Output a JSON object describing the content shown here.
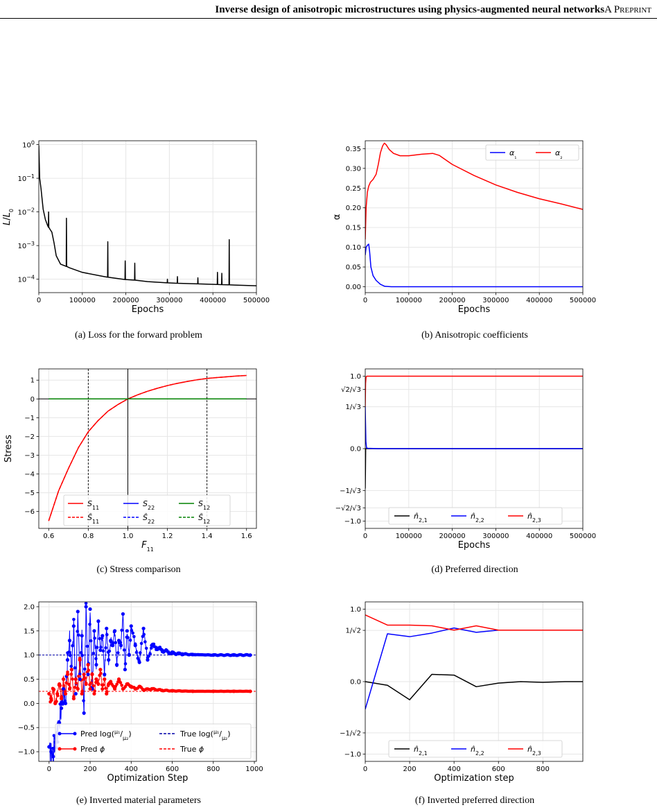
{
  "header": {
    "title": "Inverse design of anisotropic microstructures using physics-augmented neural networks",
    "tag": "A Preprint"
  },
  "captions": {
    "a": "(a) Loss for the forward problem",
    "b": "(b) Anisotropic coefficients",
    "c": "(c) Stress comparison",
    "d": "(d) Preferred direction",
    "e": "(e) Inverted material parameters",
    "f": "(f) Inverted preferred direction"
  },
  "chart_data": [
    {
      "id": "a",
      "type": "line",
      "xlabel": "Epochs",
      "ylabel": "L/L₀",
      "xlim": [
        0,
        500000
      ],
      "ylim": [
        4e-05,
        1.3
      ],
      "yscale": "log",
      "xticks": [
        0,
        100000,
        200000,
        300000,
        400000,
        500000
      ],
      "xtick_labels": [
        "0",
        "100000",
        "200000",
        "300000",
        "400000",
        "500000"
      ],
      "yticks": [
        1,
        0.1,
        0.01,
        0.001,
        0.0001
      ],
      "ytick_labels": [
        [
          "10",
          "0"
        ],
        [
          "10",
          "−1"
        ],
        [
          "10",
          "−2"
        ],
        [
          "10",
          "−3"
        ],
        [
          "10",
          "−4"
        ]
      ],
      "grid": true,
      "series": [
        {
          "color": "#000000",
          "x": [
            0,
            2000,
            5000,
            10000,
            15000,
            20000,
            22000,
            22500,
            23000,
            26000,
            30000,
            35000,
            40000,
            50000,
            60000,
            63000,
            63500,
            64000,
            70000,
            100000,
            150000,
            158000,
            158500,
            159000,
            198000,
            198500,
            199000,
            220000,
            220500,
            221000,
            250000,
            295000,
            295500,
            296000,
            318000,
            318500,
            319000,
            365000,
            365500,
            366000,
            410000,
            410500,
            411000,
            420000,
            420500,
            421000,
            437000,
            437500,
            438000,
            450000,
            500000
          ],
          "y": [
            0.95,
            0.1,
            0.05,
            0.012,
            0.006,
            0.004,
            0.0035,
            0.01,
            0.0035,
            0.003,
            0.0025,
            0.0012,
            0.0005,
            0.00028,
            0.00025,
            0.00024,
            0.0065,
            0.00024,
            0.00022,
            0.00016,
            0.00012,
            0.000115,
            0.0013,
            0.000115,
            9.8e-05,
            0.00035,
            9.8e-05,
            9.4e-05,
            0.0003,
            9.4e-05,
            8.5e-05,
            7.8e-05,
            0.0001,
            7.8e-05,
            7.6e-05,
            0.00012,
            7.6e-05,
            7.3e-05,
            0.00011,
            7.3e-05,
            7e-05,
            0.00016,
            7e-05,
            6.9e-05,
            0.00015,
            6.9e-05,
            6.8e-05,
            0.0015,
            6.8e-05,
            6.7e-05,
            6.4e-05
          ]
        }
      ]
    },
    {
      "id": "b",
      "type": "line",
      "xlabel": "Epochs",
      "ylabel": "α",
      "xlim": [
        0,
        500000
      ],
      "ylim": [
        -0.015,
        0.37
      ],
      "xticks": [
        0,
        100000,
        200000,
        300000,
        400000,
        500000
      ],
      "xtick_labels": [
        "0",
        "100000",
        "200000",
        "300000",
        "400000",
        "500000"
      ],
      "yticks": [
        0,
        0.05,
        0.1,
        0.15,
        0.2,
        0.25,
        0.3,
        0.35
      ],
      "ytick_labels": [
        "0.00",
        "0.05",
        "0.10",
        "0.15",
        "0.20",
        "0.25",
        "0.30",
        "0.35"
      ],
      "grid": true,
      "legend": "top-right",
      "series": [
        {
          "name": "α₁",
          "color": "#0000ff",
          "x": [
            0,
            2000,
            5000,
            8000,
            10000,
            13000,
            18000,
            25000,
            35000,
            45000,
            60000,
            100000,
            500000
          ],
          "y": [
            0.08,
            0.1,
            0.105,
            0.108,
            0.09,
            0.05,
            0.028,
            0.016,
            0.006,
            0.001,
            0,
            0,
            0
          ]
        },
        {
          "name": "α₂",
          "color": "#ff0000",
          "x": [
            0,
            2000,
            5000,
            8000,
            12000,
            18000,
            25000,
            30000,
            35000,
            40000,
            44000,
            48000,
            55000,
            65000,
            80000,
            100000,
            130000,
            155000,
            170000,
            200000,
            250000,
            300000,
            350000,
            400000,
            450000,
            500000
          ],
          "y": [
            0.12,
            0.2,
            0.24,
            0.255,
            0.265,
            0.272,
            0.285,
            0.31,
            0.34,
            0.357,
            0.364,
            0.36,
            0.348,
            0.338,
            0.332,
            0.332,
            0.336,
            0.338,
            0.333,
            0.31,
            0.282,
            0.258,
            0.239,
            0.223,
            0.21,
            0.196
          ]
        }
      ]
    },
    {
      "id": "c",
      "type": "line",
      "xlabel": "F₁₁",
      "ylabel": "Stress",
      "xlim": [
        0.55,
        1.65
      ],
      "ylim": [
        -6.9,
        1.6
      ],
      "xticks": [
        0.6,
        0.8,
        1.0,
        1.2,
        1.4,
        1.6
      ],
      "xtick_labels": [
        "0.6",
        "0.8",
        "1.0",
        "1.2",
        "1.4",
        "1.6"
      ],
      "yticks": [
        1,
        0,
        -1,
        -2,
        -3,
        -4,
        -5,
        -6
      ],
      "ytick_labels": [
        "1",
        "0",
        "−1",
        "−2",
        "−3",
        "−4",
        "−5",
        "−6"
      ],
      "vlines_dashed": [
        0.8,
        1.4
      ],
      "vline_solid": 1.0,
      "hline_solid": 0,
      "grid": true,
      "legend": "lower-center",
      "series": [
        {
          "name": "S",
          "sub": "11",
          "hat": false,
          "dash": false,
          "color": "#ff0000",
          "x": [
            0.6,
            0.65,
            0.7,
            0.75,
            0.8,
            0.85,
            0.9,
            0.95,
            1.0,
            1.05,
            1.1,
            1.15,
            1.2,
            1.25,
            1.3,
            1.35,
            1.4,
            1.45,
            1.5,
            1.55,
            1.6
          ],
          "y": [
            -6.5,
            -4.9,
            -3.7,
            -2.6,
            -1.75,
            -1.15,
            -0.65,
            -0.3,
            0,
            0.22,
            0.41,
            0.57,
            0.71,
            0.83,
            0.93,
            1.02,
            1.09,
            1.14,
            1.18,
            1.22,
            1.25
          ]
        },
        {
          "name": "Ŝ",
          "sub": "11",
          "hat": true,
          "dash": true,
          "color": "#ff0000",
          "x": [
            0.6,
            0.65,
            0.7,
            0.75,
            0.8,
            0.85,
            0.9,
            0.95,
            1.0,
            1.05,
            1.1,
            1.15,
            1.2,
            1.25,
            1.3,
            1.35,
            1.4,
            1.45,
            1.5,
            1.55,
            1.6
          ],
          "y": [
            -6.5,
            -4.9,
            -3.7,
            -2.6,
            -1.75,
            -1.15,
            -0.65,
            -0.3,
            0,
            0.22,
            0.41,
            0.57,
            0.71,
            0.83,
            0.93,
            1.02,
            1.09,
            1.14,
            1.18,
            1.22,
            1.25
          ]
        },
        {
          "name": "S",
          "sub": "22",
          "hat": false,
          "dash": false,
          "color": "#0000ff",
          "x": [
            0.6,
            1.6
          ],
          "y": [
            0,
            0
          ]
        },
        {
          "name": "Ŝ",
          "sub": "22",
          "hat": true,
          "dash": true,
          "color": "#0000ff",
          "x": [
            0.6,
            1.6
          ],
          "y": [
            0,
            0
          ]
        },
        {
          "name": "S",
          "sub": "12",
          "hat": false,
          "dash": false,
          "color": "#008000",
          "x": [
            0.6,
            1.6
          ],
          "y": [
            0,
            0
          ]
        },
        {
          "name": "Ŝ",
          "sub": "12",
          "hat": true,
          "dash": true,
          "color": "#008000",
          "x": [
            0.6,
            1.6
          ],
          "y": [
            0,
            0
          ]
        }
      ]
    },
    {
      "id": "d",
      "type": "line",
      "xlabel": "Epochs",
      "ylabel": "",
      "xlim": [
        0,
        500000
      ],
      "ylim": [
        -1.1,
        1.1
      ],
      "xticks": [
        0,
        100000,
        200000,
        300000,
        400000,
        500000
      ],
      "xtick_labels": [
        "0",
        "100000",
        "200000",
        "300000",
        "400000",
        "500000"
      ],
      "yticks": [
        1.0,
        0.8165,
        0.57735,
        0.0,
        -0.57735,
        -0.8165,
        -1.0
      ],
      "ytick_labels": [
        "1.0",
        "√2/√3",
        "1/√3",
        "0.0",
        "−1/√3",
        "−√2/√3",
        "−1.0"
      ],
      "grid": true,
      "legend": "lower-center",
      "series": [
        {
          "name": "n̂",
          "sub": "2,1",
          "color": "#000000",
          "x": [
            0,
            500,
            1000,
            2000,
            4000,
            500000
          ],
          "y": [
            -0.55,
            -0.3,
            0,
            0,
            0,
            0
          ]
        },
        {
          "name": "n̂",
          "sub": "2,2",
          "color": "#0000ff",
          "x": [
            0,
            500,
            1500,
            3000,
            6000,
            30000,
            500000
          ],
          "y": [
            0.58,
            0.4,
            0.1,
            0.01,
            0.005,
            0,
            0
          ]
        },
        {
          "name": "n̂",
          "sub": "2,3",
          "color": "#ff0000",
          "x": [
            0,
            800,
            2000,
            4000,
            500000
          ],
          "y": [
            0.58,
            0.9,
            0.99,
            1.0,
            1.0
          ]
        }
      ]
    },
    {
      "id": "e",
      "type": "line",
      "xlabel": "Optimization Step",
      "ylabel": "",
      "xlim": [
        -50,
        1010
      ],
      "ylim": [
        -1.2,
        2.1
      ],
      "xticks": [
        0,
        200,
        400,
        600,
        800,
        1000
      ],
      "xtick_labels": [
        "0",
        "200",
        "400",
        "600",
        "800",
        "1000"
      ],
      "yticks": [
        2.0,
        1.5,
        1.0,
        0.5,
        0.0,
        -0.5,
        -1.0
      ],
      "ytick_labels": [
        "2.0",
        "1.5",
        "1.0",
        "0.5",
        "0.0",
        "−0.5",
        "−1.0"
      ],
      "true_lines": [
        1.0,
        0.25
      ],
      "steps": 980,
      "grid": true,
      "legend": "lower-center",
      "legend_labels": {
        "pred": "Pred",
        "true": "True",
        "log": "log(",
        "close": ")",
        "mu1": "μ₁",
        "mu2": "μ₂",
        "phi": "ϕ"
      },
      "series": [
        {
          "name": "Pred log(μ₁/μ₂)",
          "color": "#0000ff",
          "markers": true,
          "x": [
            0,
            10,
            20,
            30,
            40,
            50,
            60,
            70,
            80,
            90,
            100,
            110,
            120,
            130,
            140,
            150,
            160,
            170,
            180,
            190,
            200,
            210,
            220,
            230,
            240,
            250,
            260,
            270,
            280,
            290,
            300,
            310,
            320,
            330,
            340,
            350,
            360,
            370,
            380,
            390,
            400,
            420,
            440,
            460,
            480,
            500,
            550,
            600,
            650,
            700,
            800,
            900,
            980
          ],
          "y": [
            -0.9,
            -1.0,
            -1.1,
            -0.8,
            -0.6,
            -0.4,
            -0.1,
            0.3,
            0.0,
            0.9,
            1.3,
            0.7,
            1.6,
            0.2,
            1.9,
            0.5,
            1.4,
            -0.2,
            2.0,
            0.6,
            1.95,
            0.3,
            1.5,
            0.8,
            1.7,
            1.1,
            1.4,
            0.6,
            1.55,
            0.9,
            1.3,
            1.2,
            1.5,
            0.8,
            1.3,
            1.2,
            1.85,
            0.7,
            1.5,
            1.0,
            1.6,
            1.2,
            0.85,
            1.55,
            0.9,
            1.2,
            1.1,
            1.04,
            1.02,
            1.01,
            1.0,
            1.0,
            1.0
          ]
        },
        {
          "name": "Pred ϕ",
          "color": "#ff0000",
          "markers": true,
          "x": [
            0,
            10,
            20,
            30,
            40,
            50,
            60,
            70,
            80,
            90,
            100,
            110,
            120,
            130,
            140,
            150,
            160,
            170,
            180,
            190,
            200,
            210,
            220,
            230,
            240,
            250,
            260,
            270,
            280,
            290,
            300,
            320,
            340,
            360,
            380,
            400,
            420,
            440,
            460,
            500,
            550,
            600,
            700,
            800,
            900,
            980
          ],
          "y": [
            0.2,
            0.1,
            0.3,
            0.0,
            0.2,
            0.4,
            0.1,
            0.5,
            0.2,
            0.6,
            0.3,
            0.7,
            0.1,
            0.5,
            0.3,
            0.9,
            0.2,
            0.6,
            0.4,
            0.8,
            0.3,
            0.6,
            0.2,
            0.5,
            0.4,
            0.7,
            0.3,
            0.5,
            0.2,
            0.4,
            0.45,
            0.3,
            0.5,
            0.3,
            0.4,
            0.35,
            0.3,
            0.35,
            0.28,
            0.3,
            0.27,
            0.26,
            0.25,
            0.25,
            0.25,
            0.25
          ]
        }
      ]
    },
    {
      "id": "f",
      "type": "line",
      "xlabel": "Optimization step",
      "ylabel": "",
      "xlim": [
        0,
        980
      ],
      "ylim": [
        -1.1,
        1.1
      ],
      "xticks": [
        0,
        200,
        400,
        600,
        800
      ],
      "xtick_labels": [
        "0",
        "200",
        "400",
        "600",
        "800"
      ],
      "yticks": [
        1.0,
        0.7071,
        0.0,
        -0.7071,
        -1.0
      ],
      "ytick_labels": [
        "1.0",
        "1/√2",
        "0.0",
        "−1/√2",
        "−1.0"
      ],
      "grid": true,
      "legend": "lower-center",
      "series": [
        {
          "name": "n̂",
          "sub": "2,1",
          "color": "#000000",
          "x": [
            0,
            100,
            200,
            300,
            400,
            500,
            600,
            700,
            800,
            900,
            980
          ],
          "y": [
            0.0,
            -0.05,
            -0.25,
            0.1,
            0.09,
            -0.07,
            -0.02,
            0.0,
            -0.01,
            0.0,
            0.0
          ]
        },
        {
          "name": "n̂",
          "sub": "2,2",
          "color": "#0000ff",
          "x": [
            0,
            100,
            200,
            300,
            400,
            500,
            600,
            700,
            800,
            900,
            980
          ],
          "y": [
            -0.38,
            0.66,
            0.62,
            0.67,
            0.74,
            0.68,
            0.71,
            0.71,
            0.71,
            0.71,
            0.71
          ]
        },
        {
          "name": "n̂",
          "sub": "2,3",
          "color": "#ff0000",
          "x": [
            0,
            100,
            200,
            300,
            400,
            500,
            600,
            700,
            800,
            900,
            980
          ],
          "y": [
            0.92,
            0.78,
            0.78,
            0.77,
            0.71,
            0.77,
            0.71,
            0.71,
            0.71,
            0.71,
            0.71
          ]
        }
      ]
    }
  ]
}
